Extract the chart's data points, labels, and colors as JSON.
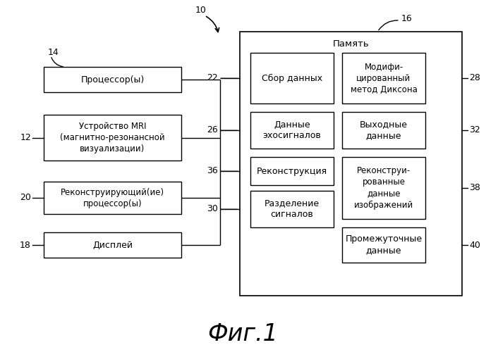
{
  "title": "Фиг.1",
  "label_10": "10",
  "label_14": "14",
  "label_12": "12",
  "label_20": "20",
  "label_18": "18",
  "label_16": "16",
  "label_22": "22",
  "label_26": "26",
  "label_36": "36",
  "label_30": "30",
  "label_28": "28",
  "label_32": "32",
  "label_38": "38",
  "label_40": "40",
  "box_processor": "Процессор(ы)",
  "box_mri": "Устройство MRI\n(магнитно-резонансной\nвизуализации)",
  "box_recon_proc": "Реконструирующий(ие)\nпроцессор(ы)",
  "box_display": "Дисплей",
  "memory_label": "Память",
  "box_data_collect": "Сбор данных",
  "box_dixon": "Модифи-\nцированный\nметод Диксона",
  "box_echo_data": "Данные\nэхосигналов",
  "box_output": "Выходные\nданные",
  "box_reconstruction": "Реконструкция",
  "box_recon_images": "Реконструи-\nрованные\nданные\nизображений",
  "box_signal_sep": "Разделение\nсигналов",
  "box_intermediate": "Промежуточные\nданные",
  "bg_color": "#ffffff",
  "box_color": "#ffffff",
  "box_edge_color": "#000000",
  "text_color": "#000000",
  "line_color": "#000000"
}
